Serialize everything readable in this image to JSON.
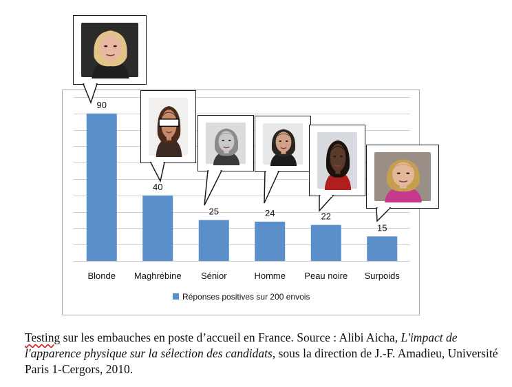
{
  "chart_data": {
    "type": "bar",
    "categories": [
      "Blonde",
      "Maghrébine",
      "Sénior",
      "Homme",
      "Peau noire",
      "Surpoids"
    ],
    "series": [
      {
        "name": "Réponses positives sur 200 envois",
        "values": [
          90,
          40,
          25,
          24,
          22,
          15
        ]
      }
    ],
    "data_labels": [
      "90",
      "40",
      "25",
      "24",
      "22",
      "15"
    ],
    "ylim": [
      0,
      100
    ],
    "grid": true,
    "y_axis_visible": false,
    "legend_position": "bottom",
    "bar_color": "#5b8fc9",
    "grid_color": "#cfcfcf"
  },
  "photos": [
    {
      "icon": "blonde-woman-portrait",
      "bg": "#2b2b2b",
      "skin": "#e7b9a2",
      "hair": "#e1c486",
      "cloth": "#1e1e1e"
    },
    {
      "icon": "woman-portrait-eyes-masked",
      "bg": "#f2f0ee",
      "skin": "#c48a6a",
      "hair": "#4a2b1b",
      "cloth": "#3d2a22",
      "mask": true
    },
    {
      "icon": "senior-woman-portrait",
      "bg": "#dcdcdc",
      "skin": "#c9c9c9",
      "hair": "#8a8a8a",
      "cloth": "#3a3a3a"
    },
    {
      "icon": "man-portrait",
      "bg": "#e8e8e8",
      "skin": "#d1a188",
      "hair": "#2b241f",
      "cloth": "#1c1c1c"
    },
    {
      "icon": "black-woman-portrait",
      "bg": "#d7dbe0",
      "skin": "#5a3b2b",
      "hair": "#1c120d",
      "cloth": "#b11e1e"
    },
    {
      "icon": "overweight-woman-portrait",
      "bg": "#9a8f86",
      "skin": "#e2b79a",
      "hair": "#c79e4f",
      "cloth": "#c7398b"
    }
  ],
  "caption": {
    "part1_underlined": "Testing",
    "part2": " sur les embauches en poste d’accueil en France. Source : Alibi Aicha, ",
    "part3_italic": "L'impact de l'apparence physique sur la sélection des candidats",
    "part4": ", sous la direction de J.-F. Amadieu, Université Paris 1-Cergors, 2010."
  }
}
